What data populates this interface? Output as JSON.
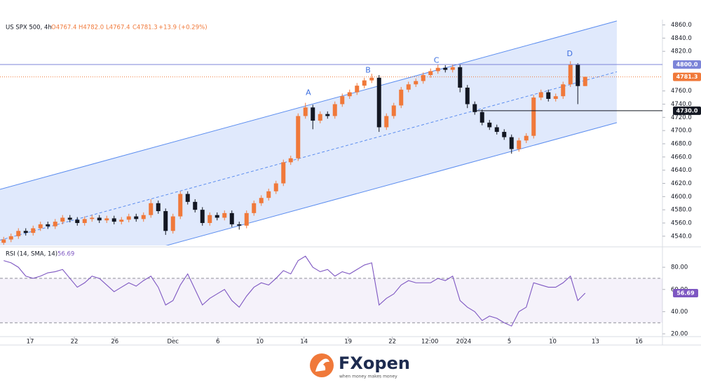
{
  "header": {
    "symbol": "US SPX 500, 4h",
    "open": "O4767.4",
    "high": "H4782.0",
    "low": "L4767.4",
    "close": "C4781.3",
    "change": "+13.9 (+0.29%)"
  },
  "chart_data": {
    "type": "candlestick",
    "open": [
      4530,
      4535,
      4540,
      4548,
      4545,
      4552,
      4558,
      4555,
      4562,
      4568,
      4565,
      4560,
      4566,
      4568,
      4564,
      4567,
      4562,
      4565,
      4570,
      4566,
      4572,
      4590,
      4578,
      4548,
      4570,
      4604,
      4592,
      4580,
      4560,
      4572,
      4568,
      4575,
      4558,
      4556,
      4575,
      4590,
      4598,
      4608,
      4620,
      4652,
      4658,
      4722,
      4735,
      4715,
      4725,
      4722,
      4740,
      4752,
      4758,
      4768,
      4776,
      4780,
      4705,
      4722,
      4738,
      4762,
      4770,
      4775,
      4784,
      4790,
      4795,
      4792,
      4796,
      4765,
      4740,
      4728,
      4712,
      4705,
      4698,
      4690,
      4672,
      4685,
      4692,
      4750,
      4758,
      4748,
      4752,
      4770,
      4800,
      4767.4
    ],
    "high": [
      4539,
      4544,
      4552,
      4552,
      4556,
      4562,
      4562,
      4566,
      4572,
      4572,
      4569,
      4570,
      4572,
      4572,
      4571,
      4571,
      4569,
      4574,
      4574,
      4576,
      4596,
      4594,
      4582,
      4574,
      4608,
      4608,
      4596,
      4584,
      4576,
      4576,
      4579,
      4579,
      4562,
      4579,
      4594,
      4602,
      4612,
      4624,
      4656,
      4662,
      4726,
      4742,
      4739,
      4729,
      4729,
      4744,
      4756,
      4762,
      4772,
      4780,
      4786,
      4784,
      4726,
      4742,
      4766,
      4774,
      4779,
      4788,
      4794,
      4800,
      4799,
      4800,
      4800,
      4769,
      4744,
      4732,
      4716,
      4709,
      4702,
      4694,
      4689,
      4696,
      4754,
      4762,
      4762,
      4756,
      4774,
      4805,
      4802,
      4782
    ],
    "low": [
      4527,
      4531,
      4536,
      4541,
      4541,
      4548,
      4551,
      4551,
      4558,
      4561,
      4556,
      4556,
      4562,
      4560,
      4560,
      4558,
      4558,
      4561,
      4562,
      4562,
      4568,
      4574,
      4542,
      4544,
      4566,
      4588,
      4576,
      4556,
      4556,
      4564,
      4564,
      4554,
      4550,
      4552,
      4571,
      4586,
      4594,
      4604,
      4616,
      4648,
      4654,
      4718,
      4702,
      4711,
      4718,
      4718,
      4736,
      4748,
      4754,
      4764,
      4772,
      4698,
      4701,
      4718,
      4734,
      4758,
      4766,
      4771,
      4780,
      4786,
      4788,
      4788,
      4758,
      4734,
      4724,
      4708,
      4701,
      4694,
      4686,
      4665,
      4668,
      4681,
      4688,
      4746,
      4744,
      4744,
      4748,
      4766,
      4740,
      4767.4
    ],
    "close": [
      4535,
      4540,
      4548,
      4545,
      4552,
      4558,
      4555,
      4562,
      4568,
      4565,
      4560,
      4566,
      4568,
      4564,
      4567,
      4562,
      4565,
      4570,
      4566,
      4572,
      4590,
      4578,
      4548,
      4570,
      4604,
      4592,
      4580,
      4560,
      4572,
      4568,
      4575,
      4558,
      4556,
      4575,
      4590,
      4598,
      4608,
      4620,
      4652,
      4658,
      4722,
      4735,
      4715,
      4725,
      4722,
      4740,
      4752,
      4758,
      4768,
      4776,
      4780,
      4705,
      4722,
      4738,
      4762,
      4770,
      4775,
      4784,
      4790,
      4795,
      4792,
      4796,
      4765,
      4740,
      4728,
      4712,
      4705,
      4698,
      4690,
      4672,
      4685,
      4692,
      4750,
      4758,
      4748,
      4752,
      4770,
      4800,
      4767.4,
      4781.3
    ],
    "up_color": "#f0793a",
    "down_color": "#131722",
    "xlim": [
      0,
      90
    ],
    "ylim": [
      4526,
      4868
    ],
    "yticks": [
      {
        "value": 4860,
        "label": "4860.0"
      },
      {
        "value": 4840,
        "label": "4840.0"
      },
      {
        "value": 4820,
        "label": "4820.0"
      },
      {
        "value": 4760,
        "label": "4760.0"
      },
      {
        "value": 4740,
        "label": "4740.0"
      },
      {
        "value": 4720,
        "label": "4720.0"
      },
      {
        "value": 4700,
        "label": "4700.0"
      },
      {
        "value": 4680,
        "label": "4680.0"
      },
      {
        "value": 4660,
        "label": "4660.0"
      },
      {
        "value": 4640,
        "label": "4640.0"
      },
      {
        "value": 4620,
        "label": "4620.0"
      },
      {
        "value": 4600,
        "label": "4600.0"
      },
      {
        "value": 4580,
        "label": "4580.0"
      },
      {
        "value": 4560,
        "label": "4560.0"
      },
      {
        "value": 4540,
        "label": "4540.0"
      }
    ],
    "xticks": [
      {
        "value": 4.1,
        "label": "17"
      },
      {
        "value": 10.1,
        "label": "22"
      },
      {
        "value": 15.6,
        "label": "26"
      },
      {
        "value": 23.5,
        "label": "Dec"
      },
      {
        "value": 29.6,
        "label": "6"
      },
      {
        "value": 35.3,
        "label": "10"
      },
      {
        "value": 41.3,
        "label": "14"
      },
      {
        "value": 47.3,
        "label": "19"
      },
      {
        "value": 53.3,
        "label": "22"
      },
      {
        "value": 58.4,
        "label": "12:00"
      },
      {
        "value": 63,
        "label": "2024"
      },
      {
        "value": 69.2,
        "label": "5"
      },
      {
        "value": 75.1,
        "label": "10"
      },
      {
        "value": 80.9,
        "label": "13"
      },
      {
        "value": 86.8,
        "label": "16"
      }
    ],
    "channel": {
      "upper": [
        [
          0,
          4611
        ],
        [
          83.8,
          4866
        ]
      ],
      "middle": [
        [
          0,
          4534
        ],
        [
          83.8,
          4789
        ]
      ],
      "lower": [
        [
          0,
          4457
        ],
        [
          83.8,
          4712
        ]
      ],
      "color": "#5b8def",
      "fill": "#dbe5fc"
    },
    "annotations": [
      {
        "text": "A",
        "x": 41.9,
        "y": 4757
      },
      {
        "text": "B",
        "x": 50,
        "y": 4791
      },
      {
        "text": "C",
        "x": 59.3,
        "y": 4806
      },
      {
        "text": "D",
        "x": 77.4,
        "y": 4816
      }
    ],
    "annotation_color": "#3d6fe0",
    "price_lines": [
      {
        "value": 4800,
        "label": "4800.0",
        "color": "#7c84d8",
        "x_from": 0
      },
      {
        "value": 4730,
        "label": "4730.0",
        "color": "#131722",
        "x_from": 64.3
      }
    ],
    "rsi": {
      "type": "line",
      "label": "RSI (14, SMA, 14)",
      "color": "#7e57c2",
      "values": [
        86,
        84,
        80,
        72,
        70,
        72,
        75,
        76,
        78,
        70,
        62,
        66,
        72,
        70,
        64,
        58,
        62,
        66,
        63,
        68,
        72,
        62,
        46,
        50,
        64,
        74,
        60,
        46,
        52,
        56,
        60,
        50,
        44,
        54,
        62,
        66,
        64,
        70,
        77,
        74,
        86,
        90,
        80,
        76,
        78,
        72,
        76,
        74,
        78,
        82,
        84,
        46,
        52,
        56,
        64,
        68,
        66,
        66,
        66,
        70,
        68,
        72,
        50,
        44,
        40,
        32,
        36,
        34,
        30,
        27,
        40,
        44,
        66,
        64,
        62,
        62,
        66,
        72,
        50,
        56.69
      ],
      "ylim": [
        17.5,
        96.5
      ],
      "yticks": [
        {
          "value": 80,
          "label": "80.00"
        },
        {
          "value": 60,
          "label": "60.00"
        },
        {
          "value": 40,
          "label": "40.00"
        },
        {
          "value": 20,
          "label": "20.00"
        }
      ],
      "bands": [
        30,
        70
      ]
    }
  },
  "footer": {
    "brand": "FXopen",
    "tagline": "when money makes money"
  }
}
